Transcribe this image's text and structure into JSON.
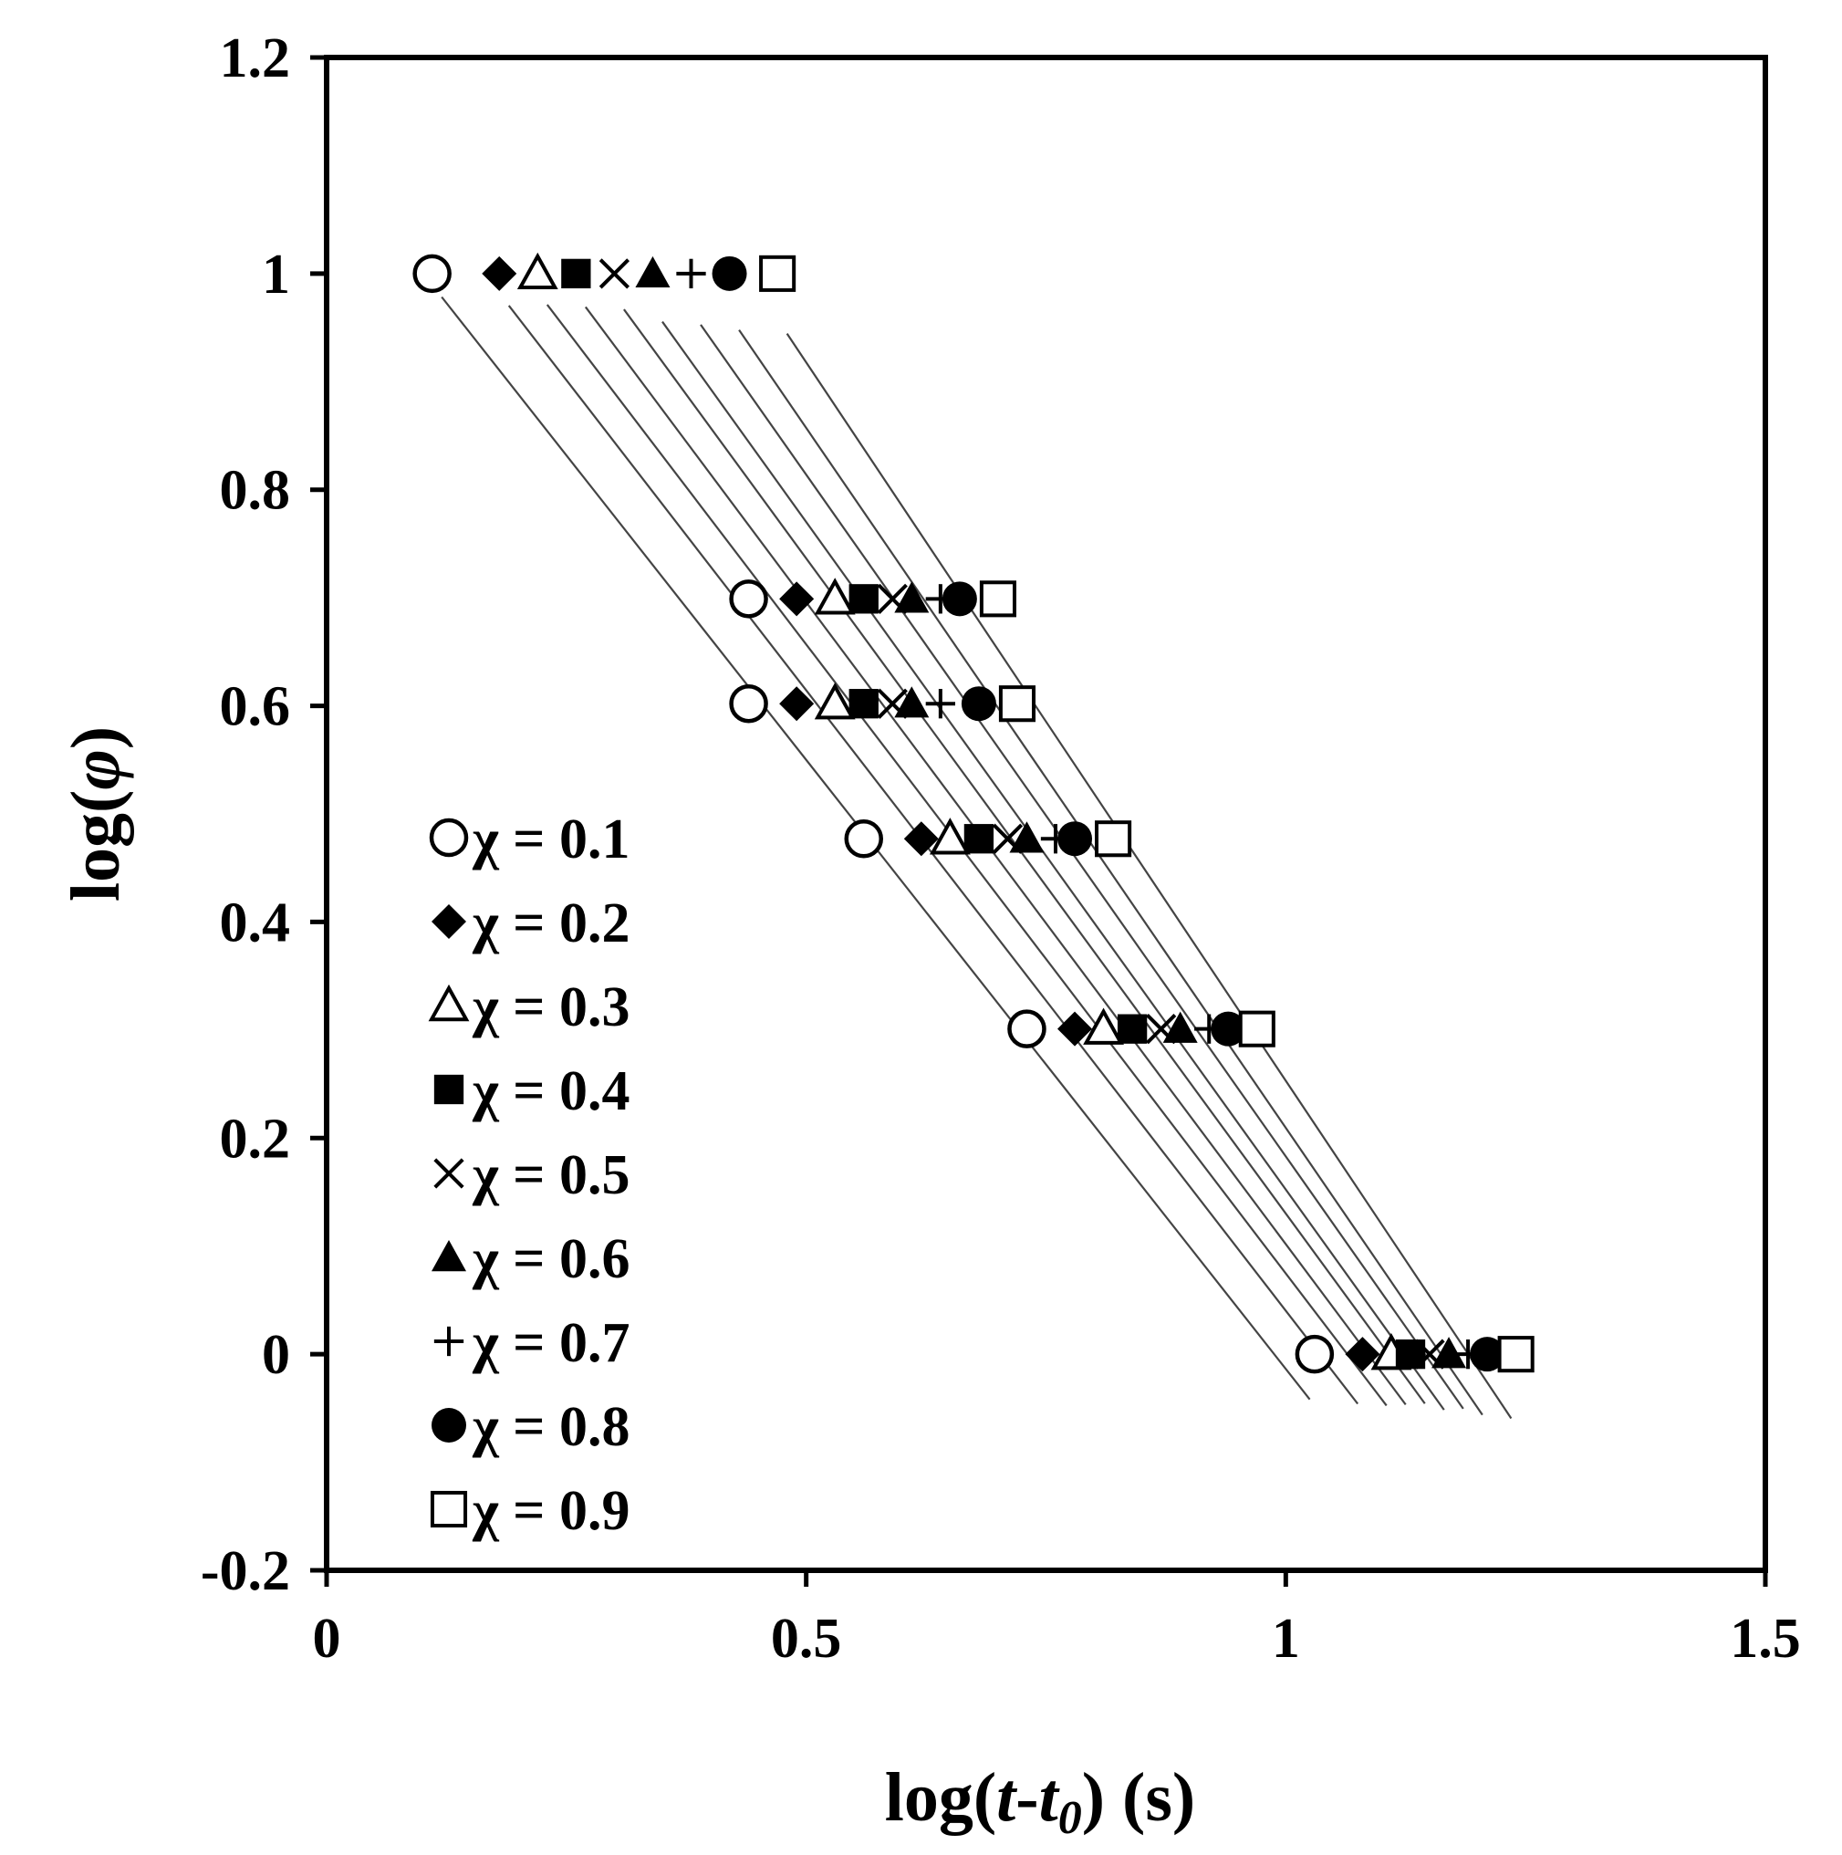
{
  "chart_data": {
    "type": "scatter",
    "xlabel": "log(t-t0) (s)",
    "ylabel": "log(φ)",
    "xlim": [
      0,
      1.5
    ],
    "ylim": [
      -0.2,
      1.2
    ],
    "x_ticks": [
      "0",
      "0.5",
      "1",
      "1.5"
    ],
    "y_ticks": [
      "-0.2",
      "0",
      "0.2",
      "0.4",
      "0.6",
      "0.8",
      "1",
      "1.2"
    ],
    "grid": false,
    "legend_position": "bottom-left",
    "y_levels": [
      1.0,
      0.699,
      0.602,
      0.477,
      0.301,
      0.0
    ],
    "series": [
      {
        "name": "χ = 0.1",
        "marker": "open-circle",
        "x": [
          0.11,
          0.44,
          0.44,
          0.56,
          0.73,
          1.03
        ]
      },
      {
        "name": "χ = 0.2",
        "marker": "filled-diamond",
        "x": [
          0.18,
          0.49,
          0.49,
          0.62,
          0.78,
          1.08
        ]
      },
      {
        "name": "χ = 0.3",
        "marker": "open-triangle",
        "x": [
          0.22,
          0.53,
          0.53,
          0.65,
          0.81,
          1.11
        ]
      },
      {
        "name": "χ = 0.4",
        "marker": "filled-square",
        "x": [
          0.26,
          0.56,
          0.56,
          0.68,
          0.84,
          1.13
        ]
      },
      {
        "name": "χ = 0.5",
        "marker": "x-cross",
        "x": [
          0.3,
          0.59,
          0.59,
          0.71,
          0.87,
          1.15
        ]
      },
      {
        "name": "χ = 0.6",
        "marker": "filled-triangle",
        "x": [
          0.34,
          0.61,
          0.61,
          0.73,
          0.89,
          1.17
        ]
      },
      {
        "name": "χ = 0.7",
        "marker": "plus",
        "x": [
          0.38,
          0.64,
          0.64,
          0.76,
          0.92,
          1.19
        ]
      },
      {
        "name": "χ = 0.8",
        "marker": "filled-circle",
        "x": [
          0.42,
          0.66,
          0.68,
          0.78,
          0.94,
          1.21
        ]
      },
      {
        "name": "χ = 0.9",
        "marker": "open-square",
        "x": [
          0.47,
          0.7,
          0.72,
          0.82,
          0.97,
          1.24
        ]
      }
    ]
  }
}
